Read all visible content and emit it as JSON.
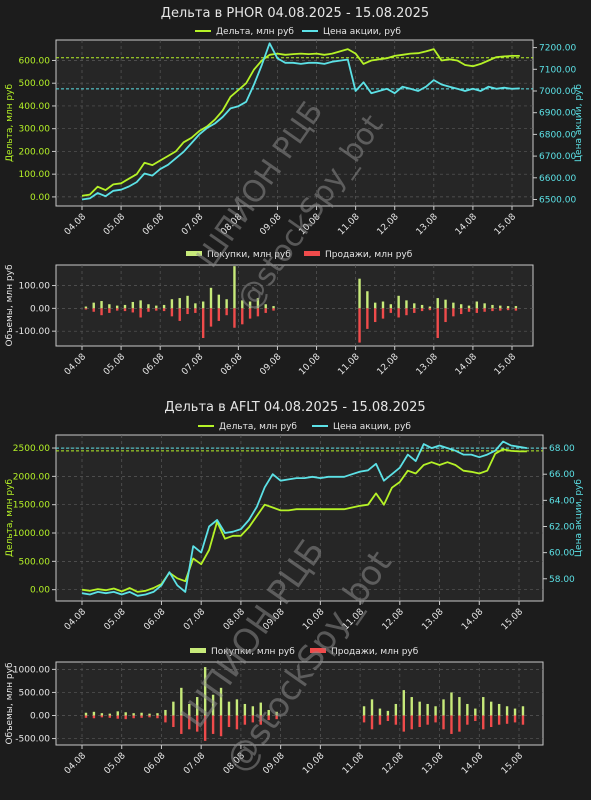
{
  "colors": {
    "background": "#1c1c1c",
    "plot_bg": "#262626",
    "frame": "#c9c9c9",
    "grid": "#595959",
    "text": "#e6e6e6",
    "delta": "#b5f227",
    "price": "#5ce1e6",
    "buy": "#c7ea7a",
    "sell": "#ef4b4b",
    "watermark": "#8a8a8a"
  },
  "watermark": {
    "line1": "ШПИОН РЦБ",
    "line2": "@stockSpy_bot"
  },
  "chart_data": [
    {
      "type": "line",
      "title": "Дельта в PHOR 04.08.2025 - 15.08.2025",
      "xlabel": "",
      "ylabel": "Дельта, млн руб",
      "y2label": "Цена акции, руб",
      "x_ticks": [
        "04.08",
        "05.08",
        "06.08",
        "07.08",
        "08.08",
        "09.08",
        "10.08",
        "11.08",
        "12.08",
        "13.08",
        "14.08",
        "15.08"
      ],
      "y_ticks": [
        "0.00",
        "100.00",
        "200.00",
        "300.00",
        "400.00",
        "500.00",
        "600.00"
      ],
      "y2_ticks": [
        "6500.00",
        "6600.00",
        "6700.00",
        "6800.00",
        "6900.00",
        "7000.00",
        "7100.00",
        "7200.00"
      ],
      "ylim": [
        -40,
        690
      ],
      "y2lim": [
        6470,
        7235
      ],
      "hline_left": 612,
      "hline_right": 7010,
      "grid": true,
      "legend_position": "top-center",
      "series": [
        {
          "name": "Дельта, млн руб",
          "axis": "left",
          "x": [
            0.0,
            0.2,
            0.4,
            0.6,
            0.8,
            1.0,
            1.2,
            1.4,
            1.6,
            1.8,
            2.0,
            2.2,
            2.4,
            2.6,
            2.8,
            3.0,
            3.2,
            3.4,
            3.6,
            3.8,
            4.0,
            4.2,
            4.4,
            4.6,
            4.8,
            5.0,
            5.2,
            5.4,
            5.6,
            5.8,
            6.0,
            6.2,
            6.4,
            6.6,
            6.8,
            7.0,
            7.2,
            7.4,
            7.6,
            7.8,
            8.0,
            8.2,
            8.4,
            8.6,
            8.8,
            9.0,
            9.2,
            9.4,
            9.6,
            9.8,
            10.0,
            10.2,
            10.4,
            10.6,
            10.8,
            11.0,
            11.2
          ],
          "values": [
            5,
            10,
            45,
            30,
            55,
            60,
            80,
            100,
            150,
            140,
            160,
            180,
            200,
            240,
            260,
            290,
            310,
            340,
            380,
            440,
            470,
            500,
            560,
            600,
            625,
            630,
            625,
            628,
            630,
            628,
            630,
            625,
            630,
            640,
            650,
            630,
            585,
            600,
            605,
            610,
            620,
            625,
            630,
            632,
            640,
            650,
            600,
            605,
            600,
            580,
            575,
            585,
            600,
            615,
            618,
            620,
            620
          ]
        },
        {
          "name": "Цена акции, руб",
          "axis": "right",
          "x": [
            0.0,
            0.2,
            0.4,
            0.6,
            0.8,
            1.0,
            1.2,
            1.4,
            1.6,
            1.8,
            2.0,
            2.2,
            2.4,
            2.6,
            2.8,
            3.0,
            3.2,
            3.4,
            3.6,
            3.8,
            4.0,
            4.2,
            4.4,
            4.6,
            4.8,
            5.0,
            5.2,
            5.4,
            5.6,
            5.8,
            6.0,
            6.2,
            6.4,
            6.6,
            6.8,
            7.0,
            7.2,
            7.4,
            7.6,
            7.8,
            8.0,
            8.2,
            8.4,
            8.6,
            8.8,
            9.0,
            9.2,
            9.4,
            9.6,
            9.8,
            10.0,
            10.2,
            10.4,
            10.6,
            10.8,
            11.0,
            11.2
          ],
          "values": [
            6500,
            6505,
            6530,
            6515,
            6540,
            6545,
            6560,
            6580,
            6620,
            6610,
            6640,
            6660,
            6690,
            6720,
            6760,
            6800,
            6830,
            6850,
            6880,
            6920,
            6930,
            6950,
            7030,
            7120,
            7220,
            7150,
            7130,
            7130,
            7125,
            7130,
            7130,
            7125,
            7135,
            7140,
            7145,
            7000,
            7040,
            6990,
            7000,
            7010,
            6990,
            7020,
            7010,
            7000,
            7020,
            7050,
            7030,
            7020,
            7010,
            7000,
            7010,
            7000,
            7020,
            7010,
            7015,
            7010,
            7012
          ]
        }
      ]
    },
    {
      "type": "bar",
      "title": "",
      "xlabel": "",
      "ylabel": "Объемы, млн руб",
      "x_ticks": [
        "04.08",
        "05.08",
        "06.08",
        "07.08",
        "08.08",
        "09.08",
        "10.08",
        "11.08",
        "12.08",
        "13.08",
        "14.08",
        "15.08"
      ],
      "y_ticks": [
        "100.00",
        "0.00",
        "-100.00"
      ],
      "ylim": [
        -165,
        190
      ],
      "grid": true,
      "legend_position": "top-center",
      "series": [
        {
          "name": "Покупки, млн руб",
          "x": [
            0.1,
            0.3,
            0.5,
            0.7,
            0.9,
            1.1,
            1.3,
            1.5,
            1.7,
            1.9,
            2.1,
            2.3,
            2.5,
            2.7,
            2.9,
            3.1,
            3.3,
            3.5,
            3.7,
            3.9,
            4.1,
            4.3,
            4.5,
            4.7,
            4.9,
            7.1,
            7.3,
            7.5,
            7.7,
            7.9,
            8.1,
            8.3,
            8.5,
            8.7,
            8.9,
            9.1,
            9.3,
            9.5,
            9.7,
            9.9,
            10.1,
            10.3,
            10.5,
            10.7,
            10.9,
            11.1
          ],
          "values": [
            8,
            25,
            32,
            18,
            12,
            15,
            28,
            35,
            18,
            12,
            15,
            40,
            45,
            55,
            22,
            30,
            90,
            60,
            40,
            185,
            35,
            30,
            45,
            18,
            10,
            130,
            75,
            25,
            30,
            18,
            55,
            35,
            22,
            15,
            8,
            45,
            38,
            25,
            18,
            12,
            30,
            22,
            15,
            12,
            10,
            10
          ]
        },
        {
          "name": "Продажи, млн руб",
          "x": [
            0.1,
            0.3,
            0.5,
            0.7,
            0.9,
            1.1,
            1.3,
            1.5,
            1.7,
            1.9,
            2.1,
            2.3,
            2.5,
            2.7,
            2.9,
            3.1,
            3.3,
            3.5,
            3.7,
            3.9,
            4.1,
            4.3,
            4.5,
            4.7,
            4.9,
            7.1,
            7.3,
            7.5,
            7.7,
            7.9,
            8.1,
            8.3,
            8.5,
            8.7,
            8.9,
            9.1,
            9.3,
            9.5,
            9.7,
            9.9,
            10.1,
            10.3,
            10.5,
            10.7,
            10.9,
            11.1
          ],
          "values": [
            -5,
            -15,
            -30,
            -20,
            -10,
            -12,
            -18,
            -40,
            -15,
            -10,
            -12,
            -35,
            -55,
            -25,
            -20,
            -130,
            -80,
            -55,
            -30,
            -85,
            -70,
            -45,
            -35,
            -20,
            -10,
            -150,
            -90,
            -60,
            -45,
            -20,
            -40,
            -30,
            -20,
            -12,
            -8,
            -130,
            -60,
            -35,
            -25,
            -15,
            -20,
            -15,
            -12,
            -10,
            -8,
            -10
          ]
        }
      ]
    },
    {
      "type": "line",
      "title": "Дельта в AFLT 04.08.2025 - 15.08.2025",
      "xlabel": "",
      "ylabel": "Дельта, млн руб",
      "y2label": "Цена акции, руб",
      "x_ticks": [
        "04.08",
        "05.08",
        "06.08",
        "07.08",
        "08.08",
        "09.08",
        "10.08",
        "11.08",
        "12.08",
        "13.08",
        "14.08",
        "15.08"
      ],
      "y_ticks": [
        "0.00",
        "500.00",
        "1000.00",
        "1500.00",
        "2000.00",
        "2500.00"
      ],
      "y2_ticks": [
        "58.00",
        "60.00",
        "62.00",
        "64.00",
        "66.00",
        "68.00"
      ],
      "ylim": [
        -200,
        2730
      ],
      "y2lim": [
        56.3,
        69.0
      ],
      "hline_left": 2450,
      "hline_right": 68.0,
      "grid": true,
      "legend_position": "top-center",
      "series": [
        {
          "name": "Дельта, млн руб",
          "axis": "left",
          "x": [
            0.0,
            0.2,
            0.4,
            0.6,
            0.8,
            1.0,
            1.2,
            1.4,
            1.6,
            1.8,
            2.0,
            2.2,
            2.4,
            2.6,
            2.8,
            3.0,
            3.2,
            3.4,
            3.6,
            3.8,
            4.0,
            4.2,
            4.4,
            4.6,
            4.8,
            5.0,
            5.2,
            5.4,
            5.6,
            5.8,
            6.0,
            6.2,
            6.4,
            6.6,
            6.8,
            7.0,
            7.2,
            7.4,
            7.6,
            7.8,
            8.0,
            8.2,
            8.4,
            8.6,
            8.8,
            9.0,
            9.2,
            9.4,
            9.6,
            9.8,
            10.0,
            10.2,
            10.4,
            10.6,
            10.8,
            11.0,
            11.2
          ],
          "values": [
            0,
            -20,
            10,
            -10,
            20,
            -30,
            30,
            -40,
            -20,
            30,
            100,
            300,
            200,
            150,
            550,
            450,
            700,
            1200,
            900,
            950,
            950,
            1100,
            1300,
            1500,
            1450,
            1400,
            1400,
            1420,
            1420,
            1420,
            1420,
            1420,
            1420,
            1420,
            1450,
            1480,
            1500,
            1700,
            1500,
            1800,
            1900,
            2100,
            2050,
            2200,
            2250,
            2200,
            2250,
            2200,
            2100,
            2080,
            2050,
            2100,
            2400,
            2480,
            2450,
            2440,
            2440
          ]
        },
        {
          "name": "Цена акции, руб",
          "axis": "right",
          "x": [
            0.0,
            0.2,
            0.4,
            0.6,
            0.8,
            1.0,
            1.2,
            1.4,
            1.6,
            1.8,
            2.0,
            2.2,
            2.4,
            2.6,
            2.8,
            3.0,
            3.2,
            3.4,
            3.6,
            3.8,
            4.0,
            4.2,
            4.4,
            4.6,
            4.8,
            5.0,
            5.2,
            5.4,
            5.6,
            5.8,
            6.0,
            6.2,
            6.4,
            6.6,
            6.8,
            7.0,
            7.2,
            7.4,
            7.6,
            7.8,
            8.0,
            8.2,
            8.4,
            8.6,
            8.8,
            9.0,
            9.2,
            9.4,
            9.6,
            9.8,
            10.0,
            10.2,
            10.4,
            10.6,
            10.8,
            11.0,
            11.2
          ],
          "values": [
            56.9,
            56.8,
            57.0,
            56.9,
            57.0,
            56.8,
            57.0,
            56.7,
            56.8,
            57.0,
            57.5,
            58.5,
            57.5,
            57.0,
            60.5,
            60.0,
            62.0,
            62.5,
            61.5,
            61.6,
            61.8,
            62.5,
            63.5,
            65.0,
            66.0,
            65.5,
            65.6,
            65.7,
            65.7,
            65.8,
            65.7,
            65.8,
            65.8,
            65.8,
            66.0,
            66.2,
            66.3,
            66.8,
            65.5,
            66.0,
            66.5,
            67.5,
            67.0,
            68.3,
            68.0,
            68.2,
            68.0,
            67.8,
            67.5,
            67.5,
            67.3,
            67.5,
            67.8,
            68.5,
            68.2,
            68.1,
            68.0
          ]
        }
      ]
    },
    {
      "type": "bar",
      "title": "",
      "xlabel": "",
      "ylabel": "Объемы, млн руб",
      "x_ticks": [
        "04.08",
        "05.08",
        "06.08",
        "07.08",
        "08.08",
        "09.08",
        "10.08",
        "11.08",
        "12.08",
        "13.08",
        "14.08",
        "15.08"
      ],
      "y_ticks": [
        "1000.00",
        "500.00",
        "0.00",
        "-500.00"
      ],
      "ylim": [
        -640,
        1160
      ],
      "grid": true,
      "legend_position": "top-center",
      "series": [
        {
          "name": "Покупки, млн руб",
          "x": [
            0.1,
            0.3,
            0.5,
            0.7,
            0.9,
            1.1,
            1.3,
            1.5,
            1.7,
            1.9,
            2.1,
            2.3,
            2.5,
            2.7,
            2.9,
            3.1,
            3.3,
            3.5,
            3.7,
            3.9,
            4.1,
            4.3,
            4.5,
            4.7,
            4.9,
            7.1,
            7.3,
            7.5,
            7.7,
            7.9,
            8.1,
            8.3,
            8.5,
            8.7,
            8.9,
            9.1,
            9.3,
            9.5,
            9.7,
            9.9,
            10.1,
            10.3,
            10.5,
            10.7,
            10.9,
            11.1
          ],
          "values": [
            60,
            80,
            50,
            40,
            90,
            70,
            50,
            60,
            40,
            50,
            120,
            300,
            600,
            250,
            400,
            1050,
            450,
            600,
            300,
            350,
            250,
            200,
            280,
            120,
            80,
            200,
            350,
            150,
            100,
            250,
            550,
            400,
            300,
            250,
            200,
            350,
            500,
            400,
            250,
            150,
            400,
            300,
            250,
            200,
            150,
            200
          ]
        },
        {
          "name": "Продажи, млн руб",
          "x": [
            0.1,
            0.3,
            0.5,
            0.7,
            0.9,
            1.1,
            1.3,
            1.5,
            1.7,
            1.9,
            2.1,
            2.3,
            2.5,
            2.7,
            2.9,
            3.1,
            3.3,
            3.5,
            3.7,
            3.9,
            4.1,
            4.3,
            4.5,
            4.7,
            4.9,
            7.1,
            7.3,
            7.5,
            7.7,
            7.9,
            8.1,
            8.3,
            8.5,
            8.7,
            8.9,
            9.1,
            9.3,
            9.5,
            9.7,
            9.9,
            10.1,
            10.3,
            10.5,
            10.7,
            10.9,
            11.1
          ],
          "values": [
            -50,
            -60,
            -40,
            -50,
            -70,
            -80,
            -60,
            -50,
            -40,
            -60,
            -150,
            -250,
            -400,
            -300,
            -350,
            -550,
            -400,
            -450,
            -250,
            -300,
            -200,
            -150,
            -200,
            -100,
            -80,
            -150,
            -300,
            -200,
            -120,
            -200,
            -350,
            -300,
            -250,
            -200,
            -150,
            -300,
            -400,
            -350,
            -200,
            -120,
            -300,
            -250,
            -200,
            -180,
            -150,
            -200
          ]
        }
      ]
    }
  ]
}
